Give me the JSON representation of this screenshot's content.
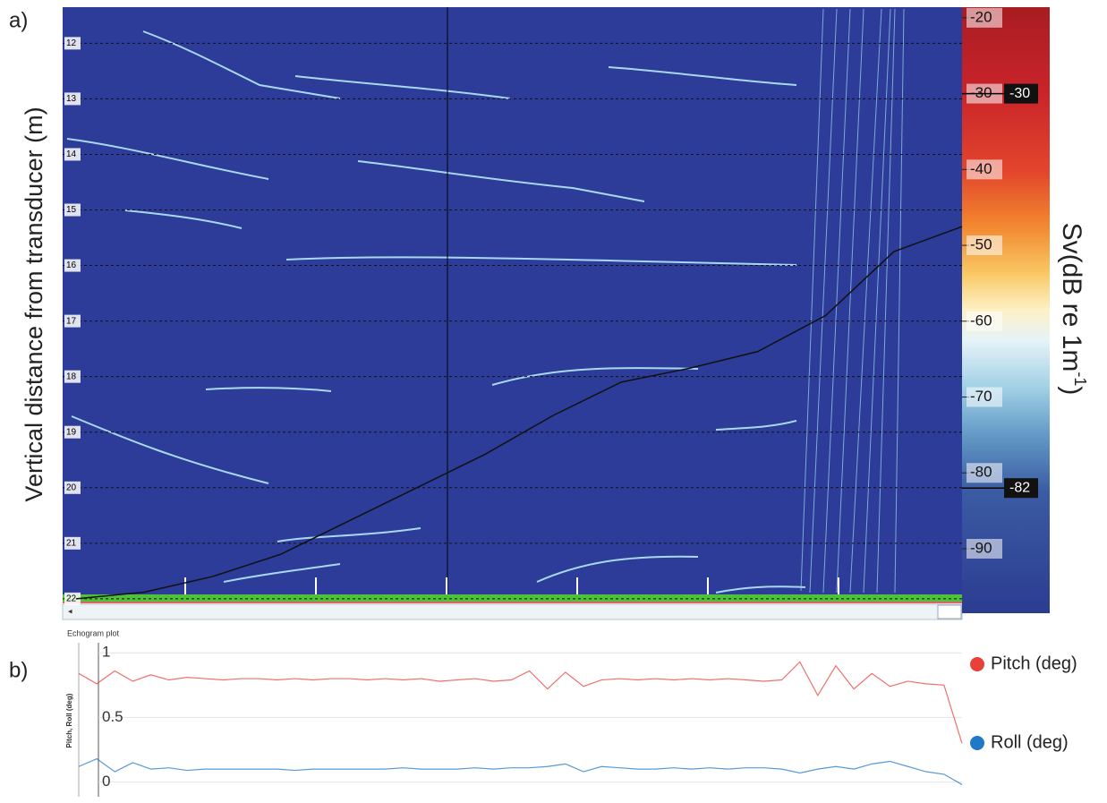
{
  "chart_data": [
    {
      "type": "echogram",
      "label": "a)",
      "ylabel": "Vertical distance from transducer (m)",
      "ylim": [
        11.35,
        22.05
      ],
      "yticks": [
        12,
        13,
        14,
        15,
        16,
        17,
        18,
        19,
        20,
        21,
        22
      ],
      "grid": true,
      "colorbar": {
        "label": [
          "Sv(dB re 1m",
          "-1",
          ")"
        ],
        "lim": [
          -18.6,
          -98.5
        ],
        "ticks": [
          -20,
          -30,
          -40,
          -50,
          -60,
          -70,
          -80,
          -90
        ],
        "thresholds": [
          -30,
          -82
        ]
      },
      "series": [
        {
          "color": "#111111",
          "values": [
            22.0,
            21.88,
            21.6,
            21.2,
            20.6,
            20.0,
            19.4,
            18.7,
            18.1,
            17.85,
            17.55,
            16.9,
            15.75,
            15.3
          ]
        }
      ],
      "footer": "Echogram plot"
    },
    {
      "type": "line",
      "label": "b)",
      "ylabel": "Pitch, Roll (deg)",
      "ylim": [
        -0.1,
        1.05
      ],
      "yticks": [
        0,
        0.5,
        1
      ],
      "grid": true,
      "series": [
        {
          "name": "Pitch (deg)",
          "color": "#e8413a",
          "values": [
            0.84,
            0.76,
            0.86,
            0.78,
            0.83,
            0.79,
            0.81,
            0.8,
            0.79,
            0.8,
            0.8,
            0.79,
            0.8,
            0.79,
            0.8,
            0.8,
            0.79,
            0.8,
            0.79,
            0.8,
            0.78,
            0.79,
            0.8,
            0.78,
            0.79,
            0.86,
            0.72,
            0.85,
            0.74,
            0.79,
            0.8,
            0.79,
            0.8,
            0.79,
            0.8,
            0.79,
            0.8,
            0.79,
            0.78,
            0.79,
            0.93,
            0.67,
            0.9,
            0.72,
            0.84,
            0.74,
            0.78,
            0.76,
            0.75,
            0.3
          ]
        },
        {
          "name": "Roll (deg)",
          "color": "#1f78c8",
          "values": [
            0.12,
            0.18,
            0.08,
            0.15,
            0.1,
            0.11,
            0.09,
            0.1,
            0.1,
            0.1,
            0.1,
            0.1,
            0.09,
            0.1,
            0.1,
            0.1,
            0.1,
            0.1,
            0.11,
            0.1,
            0.1,
            0.1,
            0.11,
            0.1,
            0.11,
            0.11,
            0.12,
            0.14,
            0.08,
            0.12,
            0.11,
            0.1,
            0.1,
            0.11,
            0.1,
            0.11,
            0.1,
            0.11,
            0.11,
            0.1,
            0.07,
            0.1,
            0.12,
            0.1,
            0.14,
            0.16,
            0.12,
            0.08,
            0.06,
            -0.02
          ]
        }
      ]
    }
  ]
}
